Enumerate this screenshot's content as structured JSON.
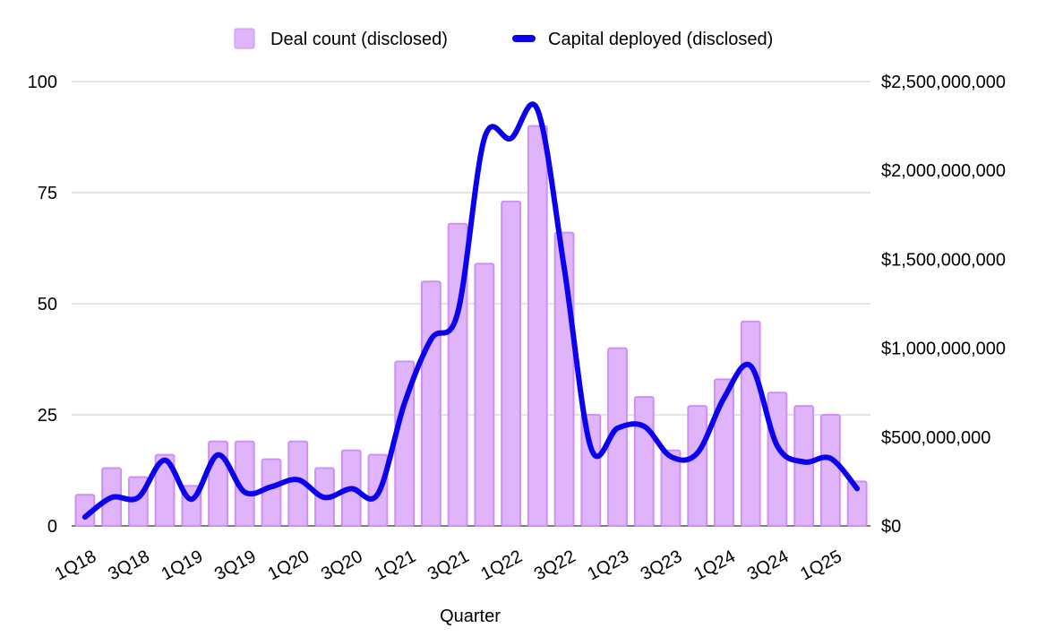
{
  "chart_data": {
    "type": "bar+line",
    "xlabel": "Quarter",
    "categories": [
      "1Q18",
      "2Q18",
      "3Q18",
      "4Q18",
      "1Q19",
      "2Q19",
      "3Q19",
      "4Q19",
      "1Q20",
      "2Q20",
      "3Q20",
      "4Q20",
      "1Q21",
      "2Q21",
      "3Q21",
      "4Q21",
      "1Q22",
      "2Q22",
      "3Q22",
      "4Q22",
      "1Q23",
      "2Q23",
      "3Q23",
      "4Q23",
      "1Q24",
      "2Q24",
      "3Q24",
      "4Q24",
      "1Q25",
      "2Q25"
    ],
    "x_tick_labels": [
      "1Q18",
      "3Q18",
      "1Q19",
      "3Q19",
      "1Q20",
      "3Q20",
      "1Q21",
      "3Q21",
      "1Q22",
      "3Q22",
      "1Q23",
      "3Q23",
      "1Q24",
      "3Q24",
      "1Q25"
    ],
    "series": [
      {
        "name": "Deal count (disclosed)",
        "kind": "bar",
        "axis": "left",
        "color": "#e0b4fb",
        "stroke": "#cf8ff6",
        "values": [
          7,
          13,
          11,
          16,
          9,
          19,
          19,
          15,
          19,
          13,
          17,
          16,
          37,
          55,
          68,
          59,
          73,
          90,
          66,
          25,
          40,
          29,
          17,
          27,
          33,
          46,
          30,
          27,
          25,
          10
        ]
      },
      {
        "name": "Capital deployed (disclosed)",
        "kind": "line",
        "axis": "right",
        "color": "#0a00ee",
        "values": [
          50000000,
          160000000,
          160000000,
          370000000,
          150000000,
          400000000,
          190000000,
          220000000,
          260000000,
          160000000,
          210000000,
          180000000,
          690000000,
          1050000000,
          1200000000,
          2180000000,
          2180000000,
          2340000000,
          1450000000,
          440000000,
          550000000,
          560000000,
          390000000,
          410000000,
          720000000,
          900000000,
          450000000,
          360000000,
          380000000,
          210000000
        ]
      }
    ],
    "left_axis": {
      "min": 0,
      "max": 100,
      "ticks": [
        0,
        25,
        50,
        75,
        100
      ],
      "tick_labels": [
        "0",
        "25",
        "50",
        "75",
        "100"
      ]
    },
    "right_axis": {
      "min": 0,
      "max": 2500000000,
      "ticks": [
        0,
        500000000,
        1000000000,
        1500000000,
        2000000000,
        2500000000
      ],
      "tick_labels": [
        "$0",
        "$500,000,000",
        "$1,000,000,000",
        "$1,500,000,000",
        "$2,000,000,000",
        "$2,500,000,000"
      ]
    },
    "gridlines": true,
    "legend_position": "top"
  },
  "legend": {
    "bar_label": "Deal count (disclosed)",
    "line_label": "Capital deployed (disclosed)"
  }
}
